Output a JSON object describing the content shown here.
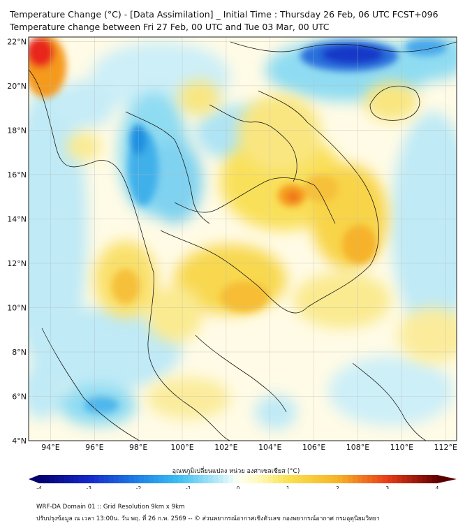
{
  "header": {
    "title_line1": "Temperature Change (°C) - [Data Assimilation] _ Initial Time : Thursday 26 Feb, 06 UTC FCST+096",
    "title_line2": "Temperature change between Fri 27 Feb, 00 UTC and Tue 03 Mar, 00 UTC"
  },
  "map": {
    "lat_labels": [
      "22°N",
      "20°N",
      "18°N",
      "16°N",
      "14°N",
      "12°N",
      "10°N",
      "8°N",
      "6°N",
      "4°N"
    ],
    "lon_labels": [
      "94°E",
      "96°E",
      "98°E",
      "100°E",
      "102°E",
      "104°E",
      "106°E",
      "108°E",
      "110°E",
      "112°E"
    ],
    "lon_range": [
      93,
      112.5
    ],
    "lat_range": [
      4,
      22.2
    ],
    "field_colors": {
      "strong_warm": "#e8251a",
      "warm": "#f59a1e",
      "mild_warm": "#f7d030",
      "neutral": "#fffbe6",
      "cool": "#8fdcf2",
      "cold": "#1e8fe0",
      "strong_cold": "#1538c8"
    }
  },
  "colorbar": {
    "title": "อุณหภูมิเปลี่ยนแปลง หน่วย องศาเซลเซียส (°C)",
    "ticks": [
      "-4",
      "-3",
      "-2",
      "-1",
      "0",
      "1",
      "2",
      "3",
      "4"
    ],
    "min": -4,
    "max": 4
  },
  "footer": {
    "line1": "WRF-DA Domain 01 :: Grid Resolution 9km x 9km",
    "line2": "ปรับปรุงข้อมูล ณ เวลา 13:00น. วัน พฤ. ที่ 26 ก.พ. 2569 -- © ส่วนพยากรณ์อากาศเชิงตัวเลข กองพยากรณ์อากาศ กรมอุตุนิยมวิทยา"
  }
}
